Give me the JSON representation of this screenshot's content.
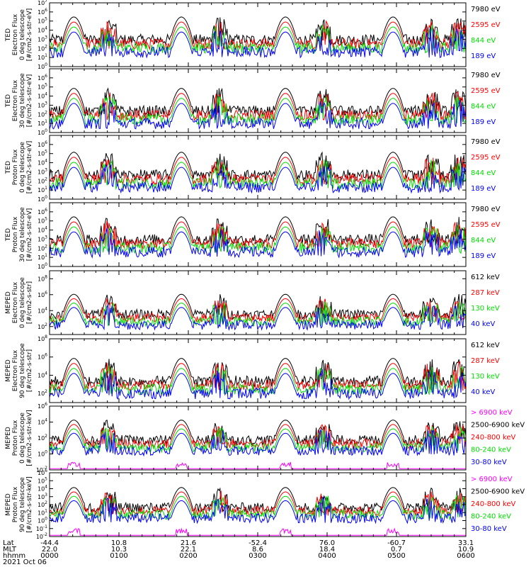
{
  "chart_data": [
    {
      "type": "line",
      "ylabel": [
        "TED",
        "Electron Flux",
        "0 deg telescope",
        "[#/cm2-s-str-eV]"
      ],
      "ylim_exp": [
        0,
        7
      ],
      "ytick_exps": [
        0,
        1,
        2,
        3,
        4,
        5,
        6,
        7
      ],
      "baseline_exp": 1.6,
      "series": [
        {
          "name": "7980 eV",
          "color": "#000000"
        },
        {
          "name": "2595 eV",
          "color": "#ff0000"
        },
        {
          "name": "844 eV",
          "color": "#00dd00"
        },
        {
          "name": "189 eV",
          "color": "#0000ff"
        }
      ]
    },
    {
      "type": "line",
      "ylabel": [
        "TED",
        "Electron Flux",
        "30 deg telescope",
        "[#/cm2-s-str-eV]"
      ],
      "ylim_exp": [
        0,
        7
      ],
      "ytick_exps": [
        0,
        1,
        2,
        3,
        4,
        5,
        6
      ],
      "baseline_exp": 1.0,
      "series": [
        {
          "name": "7980 eV",
          "color": "#000000"
        },
        {
          "name": "2595 eV",
          "color": "#ff0000"
        },
        {
          "name": "844 eV",
          "color": "#00dd00"
        },
        {
          "name": "189 eV",
          "color": "#0000ff"
        }
      ]
    },
    {
      "type": "line",
      "ylabel": [
        "TED",
        "Proton Flux",
        "0 deg telescope",
        "[#/cm2-s-str-eV]"
      ],
      "ylim_exp": [
        0,
        7
      ],
      "ytick_exps": [
        0,
        1,
        2,
        3,
        4,
        5,
        6
      ],
      "baseline_exp": 1.3,
      "series": [
        {
          "name": "7980 eV",
          "color": "#000000"
        },
        {
          "name": "2595 eV",
          "color": "#ff0000"
        },
        {
          "name": "844 eV",
          "color": "#00dd00"
        },
        {
          "name": "189 eV",
          "color": "#0000ff"
        }
      ]
    },
    {
      "type": "line",
      "ylabel": [
        "TED",
        "Proton Flux",
        "30 deg telescope",
        "[#/cm2-s-str-eV]"
      ],
      "ylim_exp": [
        0,
        7
      ],
      "ytick_exps": [
        0,
        1,
        2,
        3,
        4,
        5,
        6
      ],
      "baseline_exp": 1.6,
      "series": [
        {
          "name": "7980 eV",
          "color": "#000000"
        },
        {
          "name": "2595 eV",
          "color": "#ff0000"
        },
        {
          "name": "844 eV",
          "color": "#00dd00"
        },
        {
          "name": "189 eV",
          "color": "#0000ff"
        }
      ]
    },
    {
      "type": "line",
      "ylabel": [
        "MEPED",
        "Electron Flux",
        "0 deg telescope",
        "[#/cm2-s-str]"
      ],
      "ylim_exp": [
        1,
        9
      ],
      "ytick_exps": [
        2,
        4,
        6,
        8
      ],
      "baseline_exp": 2.2,
      "series": [
        {
          "name": "612 keV",
          "color": "#000000"
        },
        {
          "name": "287 keV",
          "color": "#ff0000"
        },
        {
          "name": "130 keV",
          "color": "#00dd00"
        },
        {
          "name": "40 keV",
          "color": "#0000ff"
        }
      ]
    },
    {
      "type": "line",
      "ylabel": [
        "MEPED",
        "Electron Flux",
        "90 deg telescope",
        "[#/cm2-s-str]"
      ],
      "ylim_exp": [
        1,
        8
      ],
      "ytick_exps": [
        2,
        4,
        6,
        8
      ],
      "baseline_exp": 2.0,
      "series": [
        {
          "name": "612 keV",
          "color": "#000000"
        },
        {
          "name": "287 keV",
          "color": "#ff0000"
        },
        {
          "name": "130 keV",
          "color": "#00dd00"
        },
        {
          "name": "40 keV",
          "color": "#0000ff"
        }
      ]
    },
    {
      "type": "line",
      "ylabel": [
        "MEPED",
        "Proton Flux",
        "0 deg telescope",
        "[#/cm2-s-str-keV]"
      ],
      "ylim_exp": [
        -2,
        6
      ],
      "ytick_exps": [
        -2,
        0,
        2,
        4,
        6
      ],
      "baseline_exp": 0.4,
      "series": [
        {
          "name": "> 6900 keV",
          "color": "#ff00ff"
        },
        {
          "name": "2500-6900 keV",
          "color": "#000000"
        },
        {
          "name": "240-800 keV",
          "color": "#ff0000"
        },
        {
          "name": "80-240 keV",
          "color": "#00dd00"
        },
        {
          "name": "30-80 keV",
          "color": "#0000ff"
        }
      ]
    },
    {
      "type": "line",
      "ylabel": [
        "MEPED",
        "Proton Flux",
        "90 deg telescope",
        "[#/cm2-s-str-keV]"
      ],
      "ylim_exp": [
        -2,
        6
      ],
      "ytick_exps": [
        -2,
        -1,
        0,
        1,
        2,
        3,
        4,
        5,
        6
      ],
      "baseline_exp": 0.3,
      "series": [
        {
          "name": "> 6900 keV",
          "color": "#ff00ff"
        },
        {
          "name": "2500-6900 keV",
          "color": "#000000"
        },
        {
          "name": "240-800 keV",
          "color": "#ff0000"
        },
        {
          "name": "80-240 keV",
          "color": "#00dd00"
        },
        {
          "name": "30-80 keV",
          "color": "#0000ff"
        }
      ]
    }
  ],
  "x_axis": {
    "row_labels": [
      "Lat",
      "MLT",
      "hhmm",
      "2021 Oct 06"
    ],
    "ticks": [
      {
        "lat": "-44.4",
        "mlt": "22.0",
        "hhmm": "0000"
      },
      {
        "lat": "10.8",
        "mlt": "10.3",
        "hhmm": "0100"
      },
      {
        "lat": "21.6",
        "mlt": "22.1",
        "hhmm": "0200"
      },
      {
        "lat": "-52.4",
        "mlt": "8.6",
        "hhmm": "0300"
      },
      {
        "lat": "76.0",
        "mlt": "18.4",
        "hhmm": "0400"
      },
      {
        "lat": "-60.7",
        "mlt": "0.7",
        "hhmm": "0500"
      },
      {
        "lat": "33.1",
        "mlt": "10.9",
        "hhmm": "0600"
      }
    ],
    "minor_per_major": 6
  },
  "pass_centers_hours": [
    0.35,
    1.9,
    3.4,
    4.95
  ],
  "aux_centers_hours": [
    0.85,
    2.45,
    3.95,
    5.5,
    5.9
  ]
}
